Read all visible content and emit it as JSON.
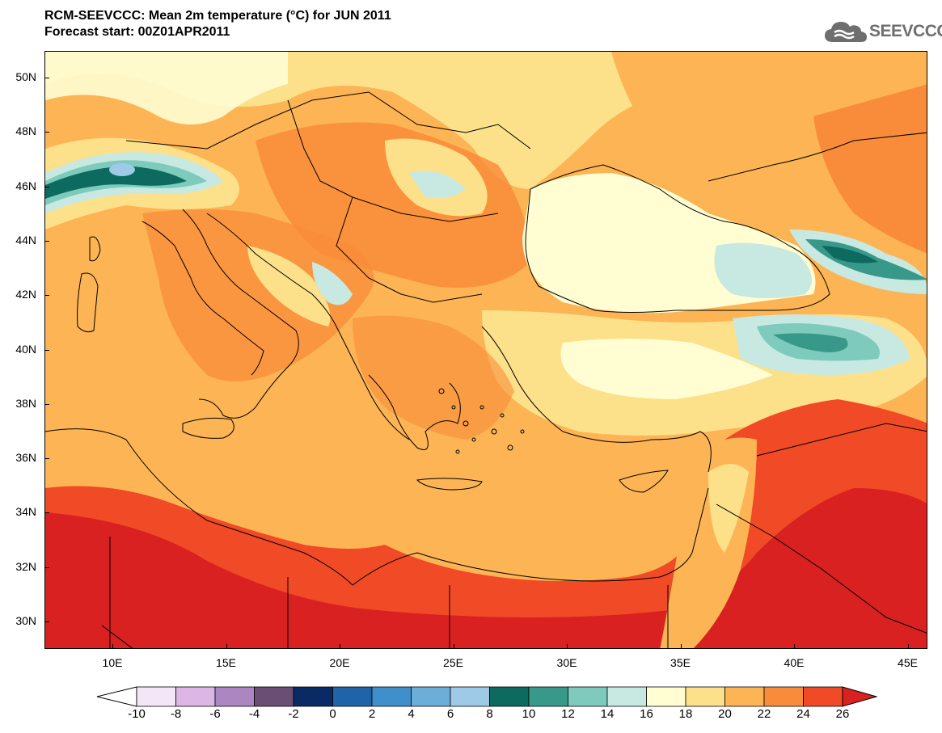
{
  "title": {
    "line1": "RCM-SEEVCCC: Mean 2m temperature (°C) for JUN 2011",
    "line2": "Forecast start: 00Z01APR2011"
  },
  "logo": {
    "text": "SEEVCCC",
    "icon": "cloud-icon"
  },
  "map": {
    "region": "Eastern Mediterranean and Black Sea",
    "lon_range": [
      7,
      46
    ],
    "lat_range": [
      29,
      51
    ],
    "latitude_labels": [
      "50N",
      "48N",
      "46N",
      "44N",
      "42N",
      "40N",
      "38N",
      "36N",
      "34N",
      "32N",
      "30N"
    ],
    "longitude_labels": [
      "10E",
      "15E",
      "20E",
      "25E",
      "30E",
      "35E",
      "40E",
      "45E"
    ]
  },
  "colorbar": {
    "labels": [
      "-10",
      "-8",
      "-6",
      "-4",
      "-2",
      "0",
      "2",
      "4",
      "6",
      "8",
      "10",
      "12",
      "14",
      "16",
      "18",
      "20",
      "22",
      "24",
      "26"
    ],
    "colors": [
      "#f3e6f6",
      "#dcb7e6",
      "#ab86c0",
      "#6a4e74",
      "#0a2a66",
      "#1f63a8",
      "#3f8fca",
      "#6baed8",
      "#9ecae8",
      "#0c6b5e",
      "#38998a",
      "#7ecbbd",
      "#c7e9e2",
      "#fffdd1",
      "#fde08a",
      "#fcb454",
      "#f98c3a",
      "#f04a26"
    ],
    "under_color": "#ffffff",
    "over_color": "#d92121"
  }
}
